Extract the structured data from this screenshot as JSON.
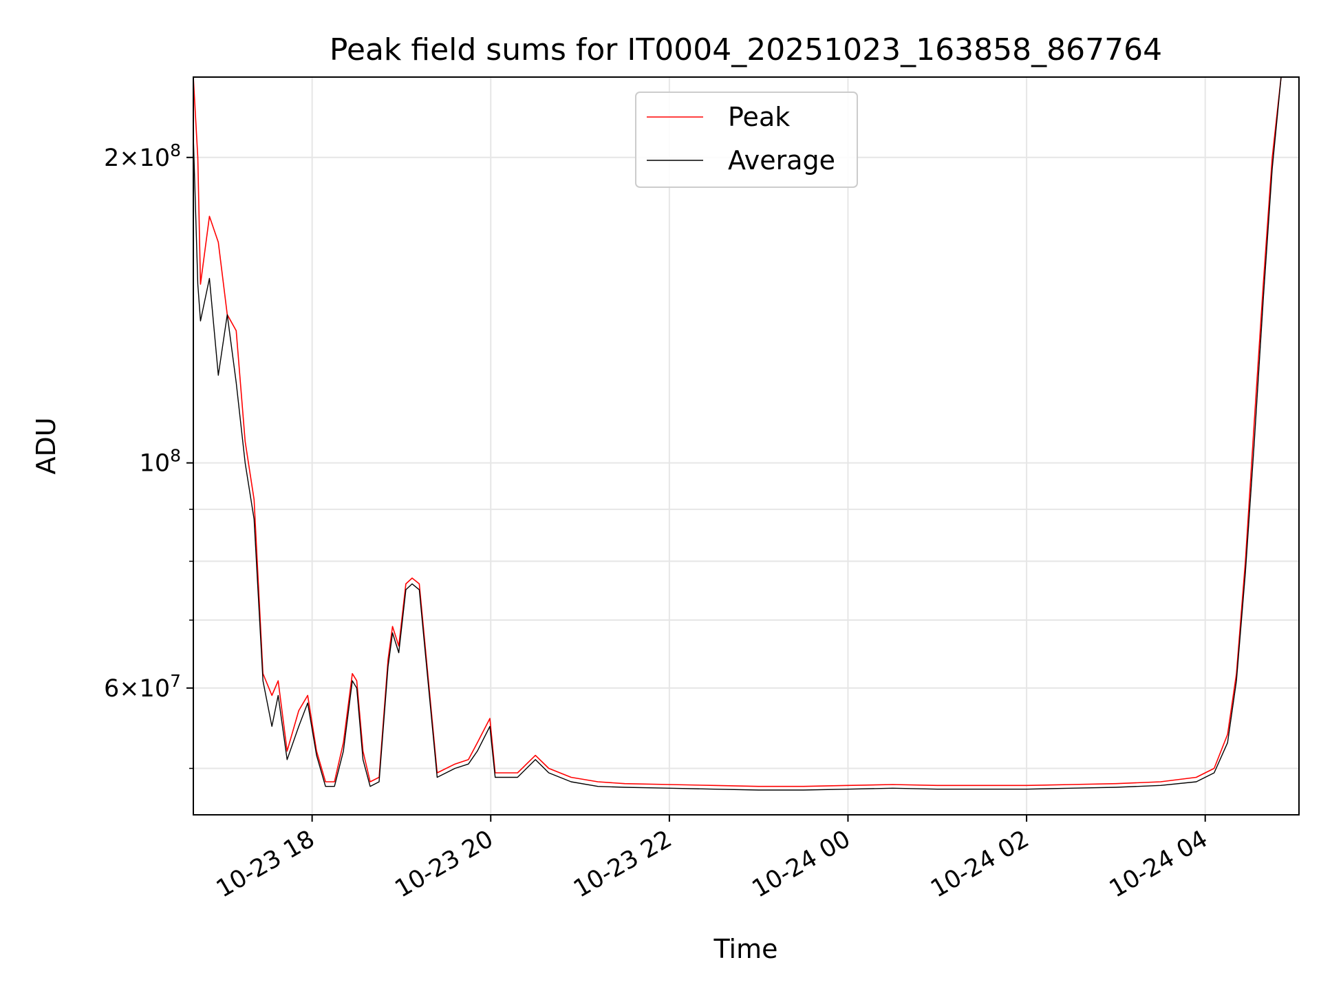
{
  "chart_data": {
    "type": "line",
    "title": "Peak field sums for IT0004_20251023_163858_867764",
    "xlabel": "Time",
    "ylabel": "ADU",
    "yscale": "log",
    "xlim": [
      16.67,
      29.05
    ],
    "ylim": [
      45000000,
      240000000
    ],
    "grid": true,
    "legend_position": "top-center",
    "x_ticks": [
      {
        "value": 18,
        "label": "10-23 18"
      },
      {
        "value": 20,
        "label": "10-23 20"
      },
      {
        "value": 22,
        "label": "10-23 22"
      },
      {
        "value": 24,
        "label": "10-24 00"
      },
      {
        "value": 26,
        "label": "10-24 02"
      },
      {
        "value": 28,
        "label": "10-24 04"
      }
    ],
    "y_ticks": [
      {
        "value": 200000000,
        "base": "2×10",
        "exp": "8"
      },
      {
        "value": 100000000,
        "base": "10",
        "exp": "8"
      },
      {
        "value": 60000000,
        "base": "6×10",
        "exp": "7"
      }
    ],
    "y_minor_ticks": [
      50000000,
      70000000,
      80000000,
      90000000
    ],
    "series": [
      {
        "name": "Peak",
        "color": "#ff0000",
        "x": [
          16.67,
          16.72,
          16.75,
          16.85,
          16.95,
          17.05,
          17.15,
          17.25,
          17.35,
          17.45,
          17.55,
          17.62,
          17.72,
          17.85,
          17.95,
          18.05,
          18.15,
          18.25,
          18.35,
          18.45,
          18.5,
          18.57,
          18.65,
          18.75,
          18.85,
          18.9,
          18.97,
          19.05,
          19.12,
          19.2,
          19.4,
          19.6,
          19.75,
          19.85,
          19.99,
          20.05,
          20.3,
          20.5,
          20.65,
          20.9,
          21.2,
          21.5,
          22.0,
          22.5,
          23.0,
          23.5,
          24.0,
          24.5,
          25.0,
          25.5,
          26.0,
          26.5,
          27.0,
          27.5,
          27.9,
          28.1,
          28.25,
          28.35,
          28.45,
          28.55,
          28.65,
          28.75,
          28.85,
          28.95,
          29.05
        ],
        "y": [
          240000000,
          200000000,
          150000000,
          175000000,
          165000000,
          140000000,
          135000000,
          105000000,
          92000000,
          62000000,
          59000000,
          61000000,
          52000000,
          57000000,
          59000000,
          52000000,
          48500000,
          48500000,
          53000000,
          62000000,
          61000000,
          52000000,
          48500000,
          49000000,
          64000000,
          69000000,
          66000000,
          76000000,
          77000000,
          76000000,
          49500000,
          50500000,
          51000000,
          53000000,
          56000000,
          49500000,
          49500000,
          51500000,
          50000000,
          49000000,
          48500000,
          48300000,
          48200000,
          48100000,
          48000000,
          48000000,
          48100000,
          48200000,
          48100000,
          48100000,
          48100000,
          48200000,
          48300000,
          48500000,
          49000000,
          50000000,
          54000000,
          62000000,
          80000000,
          110000000,
          150000000,
          200000000,
          240000000,
          240000000,
          240000000
        ]
      },
      {
        "name": "Average",
        "color": "#000000",
        "x": [
          16.67,
          16.72,
          16.75,
          16.85,
          16.95,
          17.05,
          17.15,
          17.25,
          17.35,
          17.45,
          17.55,
          17.62,
          17.72,
          17.85,
          17.95,
          18.05,
          18.15,
          18.25,
          18.35,
          18.45,
          18.5,
          18.57,
          18.65,
          18.75,
          18.85,
          18.9,
          18.97,
          19.05,
          19.12,
          19.2,
          19.4,
          19.6,
          19.75,
          19.85,
          19.99,
          20.05,
          20.3,
          20.5,
          20.65,
          20.9,
          21.2,
          21.5,
          22.0,
          22.5,
          23.0,
          23.5,
          24.0,
          24.5,
          25.0,
          25.5,
          26.0,
          26.5,
          27.0,
          27.5,
          27.9,
          28.1,
          28.25,
          28.35,
          28.45,
          28.55,
          28.65,
          28.75,
          28.85,
          28.95,
          29.05
        ],
        "y": [
          210000000,
          150000000,
          138000000,
          152000000,
          122000000,
          140000000,
          120000000,
          100000000,
          88000000,
          61000000,
          55000000,
          59000000,
          51000000,
          55000000,
          58000000,
          51500000,
          48000000,
          48000000,
          52000000,
          61000000,
          60000000,
          51000000,
          48000000,
          48500000,
          63000000,
          68000000,
          65000000,
          75000000,
          76000000,
          75000000,
          49000000,
          50000000,
          50500000,
          52000000,
          55000000,
          49000000,
          49000000,
          51000000,
          49500000,
          48500000,
          48000000,
          47900000,
          47800000,
          47700000,
          47600000,
          47600000,
          47700000,
          47800000,
          47700000,
          47700000,
          47700000,
          47800000,
          47900000,
          48100000,
          48500000,
          49500000,
          53000000,
          61000000,
          78000000,
          105000000,
          145000000,
          195000000,
          240000000,
          240000000,
          240000000
        ]
      }
    ]
  }
}
